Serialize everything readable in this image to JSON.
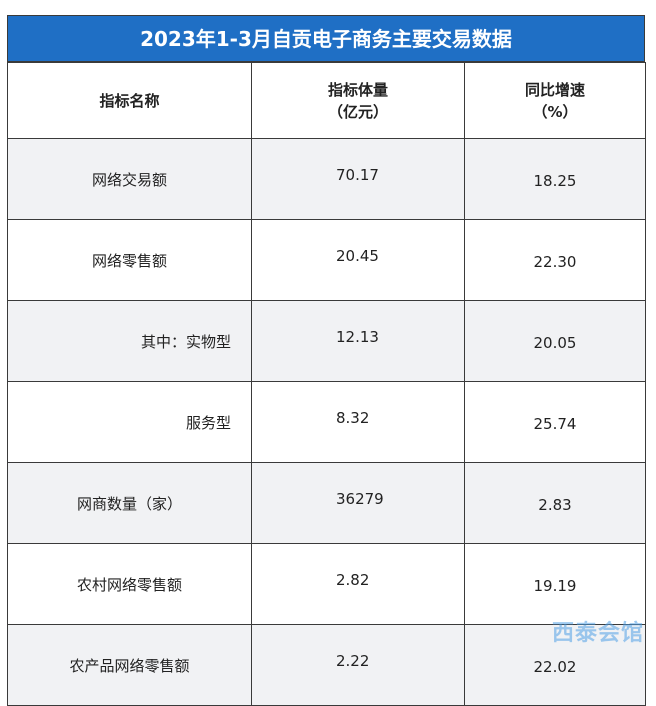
{
  "title": "2023年1-3月自贡电子商务主要交易数据",
  "table": {
    "header": [
      "指标名称",
      "指标体量\n（亿元）",
      "同比增速\n（%）"
    ],
    "rows": [
      [
        "网络交易额",
        "70.17",
        "18.25"
      ],
      [
        "网络零售额",
        "20.45",
        "22.30"
      ],
      [
        "其中：实物型",
        "12.13",
        "20.05"
      ],
      [
        "服务型",
        "8.32",
        "25.74"
      ],
      [
        "网商数量（家）",
        "36279",
        "2.83"
      ],
      [
        "农村网络零售额",
        "2.82",
        "19.19"
      ],
      [
        "农产品网络零售额",
        "2.22",
        "22.02"
      ]
    ]
  },
  "watermark": "西泰会馆"
}
